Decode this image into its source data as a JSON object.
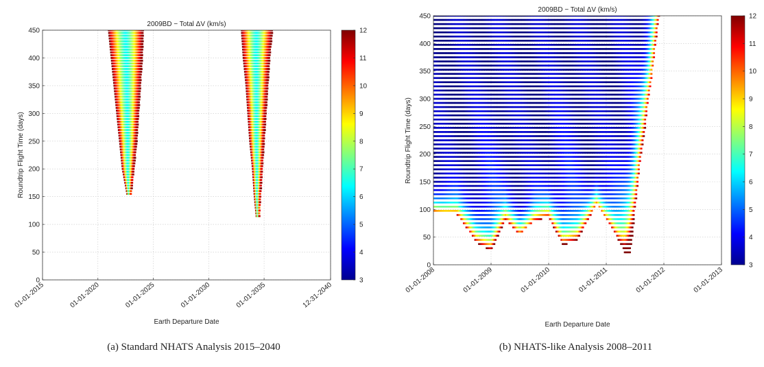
{
  "chart_data": [
    {
      "type": "scatter",
      "title": "2009BD − Total ΔV (km/s)",
      "xlabel": "Earth Departure Date",
      "ylabel": "Roundtrip Flight Time (days)",
      "xlim": [
        "2015-01-01",
        "2040-12-31"
      ],
      "ylim": [
        0,
        450
      ],
      "x_ticks": [
        "01-01-2015",
        "01-01-2020",
        "01-01-2025",
        "01-01-2030",
        "01-01-2035",
        "12-31-2040"
      ],
      "y_ticks": [
        "0",
        "50",
        "100",
        "150",
        "200",
        "250",
        "300",
        "350",
        "400",
        "450"
      ],
      "colorbar": {
        "min": 3,
        "max": 12,
        "ticks": [
          "3",
          "4",
          "5",
          "6",
          "7",
          "8",
          "9",
          "10",
          "11",
          "12"
        ],
        "colormap": "jet"
      },
      "grid": true,
      "regions": [
        {
          "rows": [
            {
              "y": 450,
              "x_start": "2021-01",
              "x_end": "2024-02"
            },
            {
              "y": 400,
              "x_start": "2021-04",
              "x_end": "2024-01"
            },
            {
              "y": 350,
              "x_start": "2021-07",
              "x_end": "2023-11"
            },
            {
              "y": 300,
              "x_start": "2021-10",
              "x_end": "2023-09"
            },
            {
              "y": 250,
              "x_start": "2022-01",
              "x_end": "2023-07"
            },
            {
              "y": 200,
              "x_start": "2022-04",
              "x_end": "2023-04"
            },
            {
              "y": 155,
              "x_start": "2022-09",
              "x_end": "2023-01"
            }
          ]
        },
        {
          "rows": [
            {
              "y": 450,
              "x_start": "2033-01",
              "x_end": "2035-10"
            },
            {
              "y": 400,
              "x_start": "2033-03",
              "x_end": "2035-07"
            },
            {
              "y": 350,
              "x_start": "2033-06",
              "x_end": "2035-05"
            },
            {
              "y": 300,
              "x_start": "2033-08",
              "x_end": "2035-03"
            },
            {
              "y": 250,
              "x_start": "2033-10",
              "x_end": "2035-01"
            },
            {
              "y": 200,
              "x_start": "2034-01",
              "x_end": "2034-11"
            },
            {
              "y": 150,
              "x_start": "2034-03",
              "x_end": "2034-09"
            },
            {
              "y": 115,
              "x_start": "2034-05",
              "x_end": "2034-08"
            }
          ]
        }
      ]
    },
    {
      "type": "scatter",
      "title": "2009BD − Total ΔV (km/s)",
      "xlabel": "Earth Departure Date",
      "ylabel": "Roundtrip Flight Time (days)",
      "xlim": [
        "2008-01-01",
        "2013-01-01"
      ],
      "ylim": [
        0,
        450
      ],
      "x_ticks": [
        "01-01-2008",
        "01-01-2009",
        "01-01-2010",
        "01-01-2011",
        "01-01-2012",
        "01-01-2013"
      ],
      "y_ticks": [
        "0",
        "50",
        "100",
        "150",
        "200",
        "250",
        "300",
        "350",
        "400",
        "450"
      ],
      "colorbar": {
        "min": 3,
        "max": 12,
        "ticks": [
          "3",
          "4",
          "5",
          "6",
          "7",
          "8",
          "9",
          "10",
          "11",
          "12"
        ],
        "colormap": "jet"
      },
      "grid": true,
      "x_start": "2008-01-01",
      "right_edge": [
        {
          "y": 450,
          "x": "2011-12-01"
        },
        {
          "y": 400,
          "x": "2011-11-10"
        },
        {
          "y": 350,
          "x": "2011-10-20"
        },
        {
          "y": 300,
          "x": "2011-09-25"
        },
        {
          "y": 250,
          "x": "2011-09-05"
        },
        {
          "y": 200,
          "x": "2011-08-10"
        },
        {
          "y": 150,
          "x": "2011-07-20"
        },
        {
          "y": 100,
          "x": "2011-07-01"
        },
        {
          "y": 50,
          "x": "2011-06-15"
        },
        {
          "y": 20,
          "x": "2011-06-01"
        }
      ],
      "bottom_edge": [
        {
          "x": "2008-01-01",
          "y": 95
        },
        {
          "x": "2008-06-01",
          "y": 90
        },
        {
          "x": "2008-10-01",
          "y": 40
        },
        {
          "x": "2009-01-01",
          "y": 25
        },
        {
          "x": "2009-04-01",
          "y": 80
        },
        {
          "x": "2009-07-01",
          "y": 55
        },
        {
          "x": "2009-10-01",
          "y": 80
        },
        {
          "x": "2010-01-01",
          "y": 85
        },
        {
          "x": "2010-04-01",
          "y": 35
        },
        {
          "x": "2010-07-01",
          "y": 45
        },
        {
          "x": "2010-11-01",
          "y": 110
        },
        {
          "x": "2011-02-01",
          "y": 70
        },
        {
          "x": "2011-05-01",
          "y": 20
        },
        {
          "x": "2011-06-15",
          "y": 20
        }
      ],
      "low_dv_centers": [
        {
          "x": "2009-01-01",
          "y": 25
        },
        {
          "x": "2010-04-15",
          "y": 40
        },
        {
          "x": "2011-05-15",
          "y": 20
        }
      ]
    }
  ],
  "captions": {
    "a": "(a)  Standard NHATS Analysis 2015–2040",
    "b": "(b)  NHATS-like Analysis 2008–2011"
  }
}
